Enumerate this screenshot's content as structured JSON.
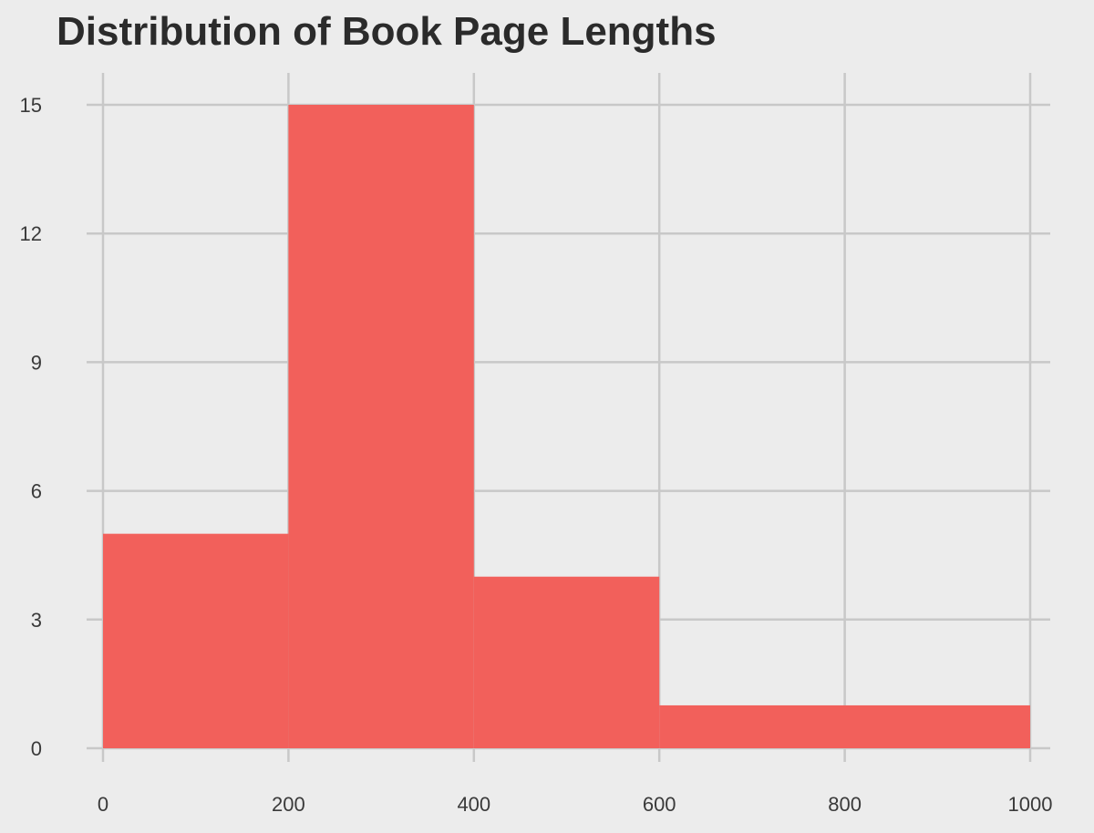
{
  "chart_data": {
    "type": "bar",
    "title": "Distribution of Book Page Lengths",
    "xlabel": "",
    "ylabel": "",
    "bins": [
      {
        "start": 0,
        "end": 200,
        "count": 5
      },
      {
        "start": 200,
        "end": 400,
        "count": 15
      },
      {
        "start": 400,
        "end": 600,
        "count": 4
      },
      {
        "start": 600,
        "end": 1000,
        "count": 1
      }
    ],
    "xlim": [
      0,
      1000
    ],
    "ylim": [
      0,
      15
    ],
    "x_ticks": [
      "0",
      "200",
      "400",
      "600",
      "800",
      "1000"
    ],
    "y_ticks": [
      "0",
      "3",
      "6",
      "9",
      "12",
      "15"
    ],
    "grid": true,
    "bar_color": "#f2605b",
    "background_color": "#ececec",
    "grid_color": "#c8c8c8"
  }
}
